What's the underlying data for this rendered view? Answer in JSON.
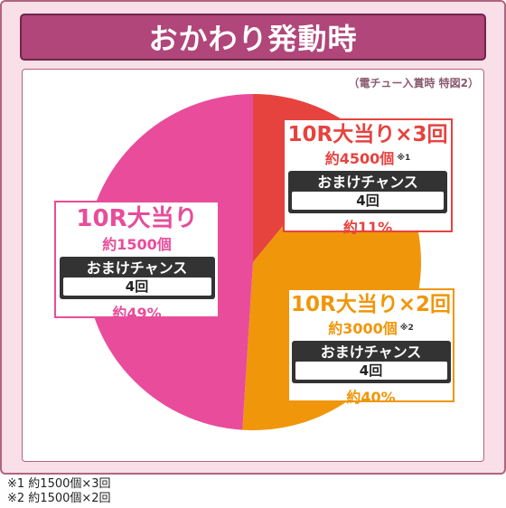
{
  "title": "おかわり発動時",
  "subnote": "（電チュー入賞時 特図2）",
  "colors": {
    "frame_bg": "#f8dfe8",
    "title_bg": "#b0467a",
    "pink": "#e84c9a",
    "red": "#e6433f",
    "orange": "#f0960a"
  },
  "chart_data": {
    "type": "pie",
    "title": "おかわり発動時",
    "subtitle": "（電チュー入賞時 特図2）",
    "slices": [
      {
        "label": "10R大当り×3回",
        "value": 11,
        "percent_label": "約11%",
        "amount": "約4500個",
        "mark": "※1",
        "bonus_label": "おまけチャンス",
        "bonus_value": "4回",
        "color": "#e6433f"
      },
      {
        "label": "10R大当り×2回",
        "value": 40,
        "percent_label": "約40%",
        "amount": "約3000個",
        "mark": "※2",
        "bonus_label": "おまけチャンス",
        "bonus_value": "4回",
        "color": "#f0960a"
      },
      {
        "label": "10R大当り",
        "value": 49,
        "percent_label": "約49%",
        "amount": "約1500個",
        "mark": "",
        "bonus_label": "おまけチャンス",
        "bonus_value": "4回",
        "color": "#e84c9a"
      }
    ],
    "start_angle_deg": 0,
    "direction": "clockwise"
  },
  "footnotes": [
    "※1 約1500個×3回",
    "※2 約1500個×2回"
  ]
}
